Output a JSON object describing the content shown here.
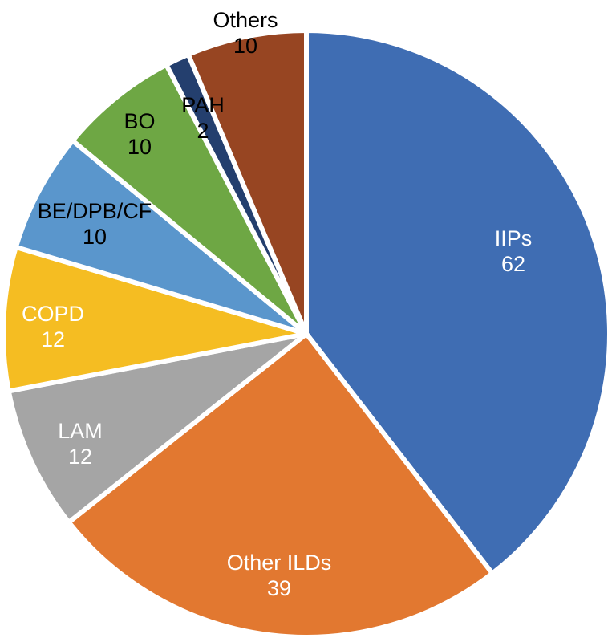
{
  "chart_data": {
    "type": "pie",
    "title": "",
    "start_angle_deg": 0,
    "direction": "clockwise",
    "slices": [
      {
        "label": "IIPs",
        "value": 62,
        "color": "#3f6db3",
        "label_color": "#ffffff"
      },
      {
        "label": "Other ILDs",
        "value": 39,
        "color": "#e27830",
        "label_color": "#ffffff"
      },
      {
        "label": "LAM",
        "value": 12,
        "color": "#a5a5a5",
        "label_color": "#ffffff"
      },
      {
        "label": "COPD",
        "value": 12,
        "color": "#f5bd22",
        "label_color": "#ffffff"
      },
      {
        "label": "BE/DPB/CF",
        "value": 10,
        "color": "#5a96cc",
        "label_color": "#000000"
      },
      {
        "label": "BO",
        "value": 10,
        "color": "#6ea744",
        "label_color": "#000000"
      },
      {
        "label": "PAH",
        "value": 2,
        "color": "#243f6e",
        "label_color": "#000000"
      },
      {
        "label": "Others",
        "value": 10,
        "color": "#974522",
        "label_color": "#000000"
      }
    ]
  }
}
